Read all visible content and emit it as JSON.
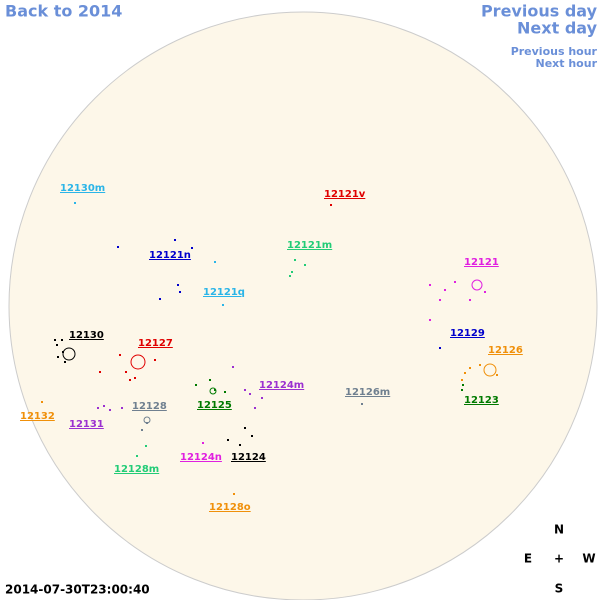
{
  "header": {
    "back": "Back to 2014",
    "previous_day": "Previous day",
    "next_day": "Next day",
    "previous_hour": "Previous hour",
    "next_hour": "Next hour"
  },
  "regions": [
    {
      "label": "12130m",
      "color": "#2bb5e8"
    },
    {
      "label": "12121v",
      "color": "#e00000"
    },
    {
      "label": "12121m",
      "color": "#22cc77"
    },
    {
      "label": "12121n",
      "color": "#0000cc"
    },
    {
      "label": "12121",
      "color": "#e020e0"
    },
    {
      "label": "12121q",
      "color": "#2bb5e8"
    },
    {
      "label": "12129",
      "color": "#0000cc"
    },
    {
      "label": "12130",
      "color": "#000000"
    },
    {
      "label": "12127",
      "color": "#e00000"
    },
    {
      "label": "12126",
      "color": "#f0900a"
    },
    {
      "label": "12124m",
      "color": "#9b30d0"
    },
    {
      "label": "12126m",
      "color": "#708090"
    },
    {
      "label": "12123",
      "color": "#007a00"
    },
    {
      "label": "12128",
      "color": "#708090"
    },
    {
      "label": "12125",
      "color": "#007a00"
    },
    {
      "label": "12132",
      "color": "#f0900a"
    },
    {
      "label": "12131",
      "color": "#9b30d0"
    },
    {
      "label": "12124n",
      "color": "#e020e0"
    },
    {
      "label": "12124",
      "color": "#000000"
    },
    {
      "label": "12128m",
      "color": "#22cc77"
    },
    {
      "label": "12128o",
      "color": "#f0900a"
    }
  ],
  "compass": {
    "north": "N",
    "east": "E",
    "center": "+",
    "west": "W",
    "south": "S"
  },
  "timestamp": "2014-07-30T23:00:40"
}
